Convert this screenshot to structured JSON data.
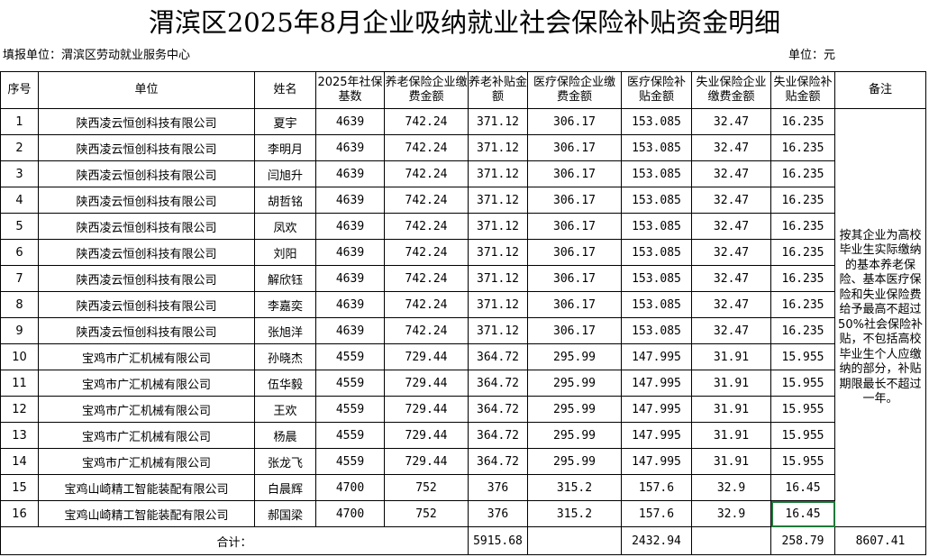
{
  "title": "渭滨区2025年8月企业吸纳就业社会保险补贴资金明细",
  "unit_label": "填报单位：渭滨区劳动就业服务中心",
  "currency_label": "单位：元",
  "headers": [
    "序号",
    "单位",
    "姓名",
    "2025年社保基数",
    "养老保险企业缴费金额",
    "养老补贴金额",
    "医疗保险企业缴费金额",
    "医疗保险补贴金额",
    "失业保险企业缴费金额",
    "失业保险补贴金额",
    "备注"
  ],
  "rows": [
    [
      "1",
      "陕西凌云恒创科技有限公司",
      "夏宇",
      "4639",
      "742.24",
      "371.12",
      "306.17",
      "153.085",
      "32.47",
      "16.235"
    ],
    [
      "2",
      "陕西凌云恒创科技有限公司",
      "李明月",
      "4639",
      "742.24",
      "371.12",
      "306.17",
      "153.085",
      "32.47",
      "16.235"
    ],
    [
      "3",
      "陕西凌云恒创科技有限公司",
      "闫旭升",
      "4639",
      "742.24",
      "371.12",
      "306.17",
      "153.085",
      "32.47",
      "16.235"
    ],
    [
      "4",
      "陕西凌云恒创科技有限公司",
      "胡哲铭",
      "4639",
      "742.24",
      "371.12",
      "306.17",
      "153.085",
      "32.47",
      "16.235"
    ],
    [
      "5",
      "陕西凌云恒创科技有限公司",
      "凤欢",
      "4639",
      "742.24",
      "371.12",
      "306.17",
      "153.085",
      "32.47",
      "16.235"
    ],
    [
      "6",
      "陕西凌云恒创科技有限公司",
      "刘阳",
      "4639",
      "742.24",
      "371.12",
      "306.17",
      "153.085",
      "32.47",
      "16.235"
    ],
    [
      "7",
      "陕西凌云恒创科技有限公司",
      "解欣钰",
      "4639",
      "742.24",
      "371.12",
      "306.17",
      "153.085",
      "32.47",
      "16.235"
    ],
    [
      "8",
      "陕西凌云恒创科技有限公司",
      "李嘉奕",
      "4639",
      "742.24",
      "371.12",
      "306.17",
      "153.085",
      "32.47",
      "16.235"
    ],
    [
      "9",
      "陕西凌云恒创科技有限公司",
      "张旭洋",
      "4639",
      "742.24",
      "371.12",
      "306.17",
      "153.085",
      "32.47",
      "16.235"
    ],
    [
      "10",
      "宝鸡市广汇机械有限公司",
      "孙晓杰",
      "4559",
      "729.44",
      "364.72",
      "295.99",
      "147.995",
      "31.91",
      "15.955"
    ],
    [
      "11",
      "宝鸡市广汇机械有限公司",
      "伍华毅",
      "4559",
      "729.44",
      "364.72",
      "295.99",
      "147.995",
      "31.91",
      "15.955"
    ],
    [
      "12",
      "宝鸡市广汇机械有限公司",
      "王欢",
      "4559",
      "729.44",
      "364.72",
      "295.99",
      "147.995",
      "31.91",
      "15.955"
    ],
    [
      "13",
      "宝鸡市广汇机械有限公司",
      "杨晨",
      "4559",
      "729.44",
      "364.72",
      "295.99",
      "147.995",
      "31.91",
      "15.955"
    ],
    [
      "14",
      "宝鸡市广汇机械有限公司",
      "张龙飞",
      "4559",
      "729.44",
      "364.72",
      "295.99",
      "147.995",
      "31.91",
      "15.955"
    ],
    [
      "15",
      "宝鸡山崎精工智能装配有限公司",
      "白晨辉",
      "4700",
      "752",
      "376",
      "315.2",
      "157.6",
      "32.9",
      "16.45"
    ],
    [
      "16",
      "宝鸡山崎精工智能装配有限公司",
      "郝国梁",
      "4700",
      "752",
      "376",
      "315.2",
      "157.6",
      "32.9",
      "16.45"
    ]
  ],
  "note": "按其企业为高校毕业生实际缴纳的基本养老保险、基本医疗保险和失业保险费给予最高不超过50%社会保险补贴，不包括高校毕业生个人应缴纳的部分，补贴期限最长不超过一年。",
  "total": {
    "label": "合计：",
    "pension_subsidy": "5915.68",
    "medical_subsidy": "2432.94",
    "unemployment_subsidy": "258.79",
    "grand_total": "8607.41"
  },
  "accent_color": "#1f7a3a"
}
